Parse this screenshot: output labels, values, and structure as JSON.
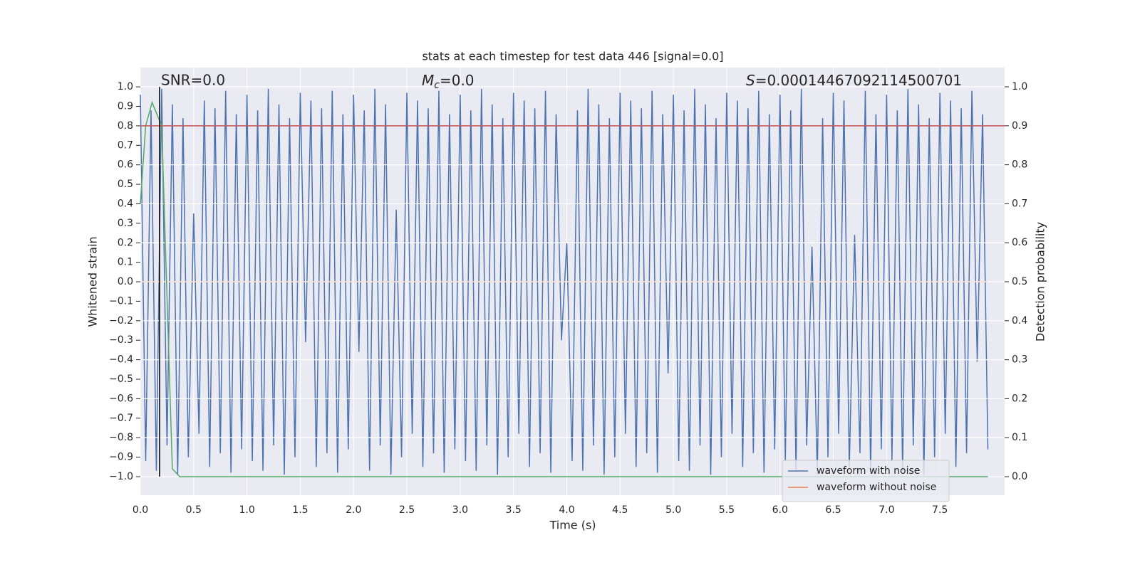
{
  "chart_data": {
    "type": "line",
    "title": "stats at each timestep for test data 446 [signal=0.0]",
    "x_label": "Time (s)",
    "y_label": "Whitened strain",
    "y2_label": "Detection probability",
    "annotations": [
      {
        "text": "SNR=0.0"
      },
      {
        "symbol": "M",
        "subscript": "c",
        "text": "=0.0"
      },
      {
        "symbol": "S",
        "text": "=0.00014467092114500701"
      }
    ],
    "xlim": [
      0,
      8.107
    ],
    "ylim": [
      -1.095,
      1.099
    ],
    "y2lim": [
      -0.0474,
      1.0493
    ],
    "xticks": [
      {
        "value": 0,
        "label": "0.0"
      },
      {
        "value": 0.5,
        "label": "0.5"
      },
      {
        "value": 1,
        "label": "1.0"
      },
      {
        "value": 1.5,
        "label": "1.5"
      },
      {
        "value": 2,
        "label": "2.0"
      },
      {
        "value": 2.5,
        "label": "2.5"
      },
      {
        "value": 3,
        "label": "3.0"
      },
      {
        "value": 3.5,
        "label": "3.5"
      },
      {
        "value": 4,
        "label": "4.0"
      },
      {
        "value": 4.5,
        "label": "4.5"
      },
      {
        "value": 5,
        "label": "5.0"
      },
      {
        "value": 5.5,
        "label": "5.5"
      },
      {
        "value": 6,
        "label": "6.0"
      },
      {
        "value": 6.5,
        "label": "6.5"
      },
      {
        "value": 7,
        "label": "7.0"
      },
      {
        "value": 7.5,
        "label": "7.5"
      }
    ],
    "yticks": [
      {
        "value": -1,
        "label": "−1.0"
      },
      {
        "value": -0.9,
        "label": "−0.9"
      },
      {
        "value": -0.8,
        "label": "−0.8"
      },
      {
        "value": -0.7,
        "label": "−0.7"
      },
      {
        "value": -0.6,
        "label": "−0.6"
      },
      {
        "value": -0.5,
        "label": "−0.5"
      },
      {
        "value": -0.4,
        "label": "−0.4"
      },
      {
        "value": -0.3,
        "label": "−0.3"
      },
      {
        "value": -0.2,
        "label": "−0.2"
      },
      {
        "value": -0.1,
        "label": "−0.1"
      },
      {
        "value": 0,
        "label": "0.0"
      },
      {
        "value": 0.1,
        "label": "0.1"
      },
      {
        "value": 0.2,
        "label": "0.2"
      },
      {
        "value": 0.3,
        "label": "0.3"
      },
      {
        "value": 0.4,
        "label": "0.4"
      },
      {
        "value": 0.5,
        "label": "0.5"
      },
      {
        "value": 0.6,
        "label": "0.6"
      },
      {
        "value": 0.7,
        "label": "0.7"
      },
      {
        "value": 0.8,
        "label": "0.8"
      },
      {
        "value": 0.9,
        "label": "0.9"
      },
      {
        "value": 1,
        "label": "1.0"
      }
    ],
    "y2ticks": [
      {
        "value": 0,
        "label": "0.0"
      },
      {
        "value": 0.1,
        "label": "0.1"
      },
      {
        "value": 0.2,
        "label": "0.2"
      },
      {
        "value": 0.3,
        "label": "0.3"
      },
      {
        "value": 0.4,
        "label": "0.4"
      },
      {
        "value": 0.5,
        "label": "0.5"
      },
      {
        "value": 0.6,
        "label": "0.6"
      },
      {
        "value": 0.7,
        "label": "0.7"
      },
      {
        "value": 0.8,
        "label": "0.8"
      },
      {
        "value": 0.9,
        "label": "0.9"
      },
      {
        "value": 1,
        "label": "1.0"
      }
    ],
    "grid": true,
    "hgrid_axis": "y2",
    "legend_position": "lower right",
    "marker_x": 0.18,
    "marker_color": "#000000",
    "threshold": {
      "value": 0.9,
      "axis": "y2",
      "color": "#c44e52"
    },
    "series": [
      {
        "name": "waveform with noise",
        "color": "#4c72b0",
        "x": [
          0,
          0.05,
          0.1,
          0.15,
          0.2,
          0.25,
          0.3,
          0.35,
          0.4,
          0.45,
          0.5,
          0.55,
          0.6,
          0.65,
          0.7,
          0.75,
          0.8,
          0.85,
          0.9,
          0.95,
          1,
          1.05,
          1.1,
          1.15,
          1.2,
          1.25,
          1.3,
          1.35,
          1.4,
          1.45,
          1.5,
          1.55,
          1.6,
          1.65,
          1.7,
          1.75,
          1.8,
          1.85,
          1.9,
          1.95,
          2,
          2.05,
          2.1,
          2.15,
          2.2,
          2.25,
          2.3,
          2.35,
          2.4,
          2.45,
          2.5,
          2.55,
          2.6,
          2.65,
          2.7,
          2.75,
          2.8,
          2.85,
          2.9,
          2.95,
          3,
          3.05,
          3.1,
          3.15,
          3.2,
          3.25,
          3.3,
          3.35,
          3.4,
          3.45,
          3.5,
          3.55,
          3.6,
          3.65,
          3.7,
          3.75,
          3.8,
          3.85,
          3.9,
          3.95,
          4,
          4.05,
          4.1,
          4.15,
          4.2,
          4.25,
          4.3,
          4.35,
          4.4,
          4.45,
          4.5,
          4.55,
          4.6,
          4.65,
          4.7,
          4.75,
          4.8,
          4.85,
          4.9,
          4.95,
          5,
          5.05,
          5.1,
          5.15,
          5.2,
          5.25,
          5.3,
          5.35,
          5.4,
          5.45,
          5.5,
          5.55,
          5.6,
          5.65,
          5.7,
          5.75,
          5.8,
          5.85,
          5.9,
          5.95,
          6,
          6.05,
          6.1,
          6.15,
          6.2,
          6.25,
          6.3,
          6.35,
          6.4,
          6.45,
          6.5,
          6.55,
          6.6,
          6.65,
          6.7,
          6.75,
          6.8,
          6.85,
          6.9,
          6.95,
          7,
          7.05,
          7.1,
          7.15,
          7.2,
          7.25,
          7.3,
          7.35,
          7.4,
          7.45,
          7.5,
          7.55,
          7.6,
          7.65,
          7.7,
          7.75,
          7.8,
          7.85,
          7.9,
          7.95
        ],
        "values": [
          0.96,
          -0.92,
          0.88,
          -0.97,
          0.99,
          -0.84,
          0.91,
          -0.99,
          0.84,
          -0.9,
          0.35,
          -0.78,
          0.93,
          -0.95,
          0.89,
          -0.88,
          0.98,
          -0.98,
          0.86,
          -0.86,
          0.96,
          -0.92,
          0.88,
          -0.97,
          0.99,
          -0.84,
          0.91,
          -0.99,
          0.84,
          -0.9,
          0.97,
          -0.31,
          0.93,
          -0.95,
          0.89,
          -0.88,
          0.98,
          -0.98,
          0.86,
          -0.86,
          0.96,
          -0.36,
          0.88,
          -0.97,
          0.99,
          -0.84,
          0.91,
          -0.99,
          0.37,
          -0.9,
          0.97,
          -0.78,
          0.93,
          -0.95,
          0.89,
          -0.88,
          0.98,
          -0.98,
          0.86,
          -0.86,
          0.96,
          -0.92,
          0.88,
          -0.97,
          0.99,
          -0.84,
          0.91,
          -0.99,
          0.84,
          -0.9,
          0.97,
          -0.78,
          0.93,
          -0.95,
          0.89,
          -0.88,
          0.98,
          -0.98,
          0.86,
          -0.3,
          0.2,
          -0.92,
          0.88,
          -0.97,
          0.99,
          -0.84,
          0.91,
          -0.99,
          0.84,
          -0.9,
          0.97,
          -0.78,
          0.93,
          -0.95,
          0.89,
          -0.88,
          0.98,
          -0.98,
          0.86,
          -0.47,
          0.96,
          -0.92,
          0.88,
          -0.97,
          0.99,
          -0.84,
          0.91,
          -0.99,
          0.84,
          -0.9,
          0.97,
          -0.78,
          0.93,
          -0.95,
          0.89,
          -0.88,
          0.98,
          -0.98,
          0.86,
          -0.86,
          0.96,
          -0.92,
          0.88,
          -0.97,
          0.99,
          -0.84,
          0.18,
          -0.99,
          0.84,
          -0.9,
          0.97,
          -0.78,
          0.93,
          -0.95,
          0.24,
          -0.88,
          0.98,
          -0.98,
          0.86,
          -0.86,
          0.96,
          -0.92,
          0.88,
          -0.97,
          0.99,
          -0.84,
          0.91,
          -0.99,
          0.84,
          -0.9,
          0.97,
          -0.78,
          0.93,
          -0.95,
          0.89,
          -0.88,
          0.98,
          -0.41,
          0.86,
          -0.86
        ]
      },
      {
        "name": "waveform without noise",
        "color": "#dd8452",
        "x": [
          0,
          7.95
        ],
        "values": [
          0,
          0
        ]
      },
      {
        "color": "#55a868",
        "axis": "y2",
        "x": [
          0,
          0.05,
          0.11,
          0.2,
          0.3,
          0.37,
          7.95
        ],
        "values": [
          0.7,
          0.9,
          0.96,
          0.9,
          0.02,
          0,
          0
        ]
      }
    ]
  }
}
